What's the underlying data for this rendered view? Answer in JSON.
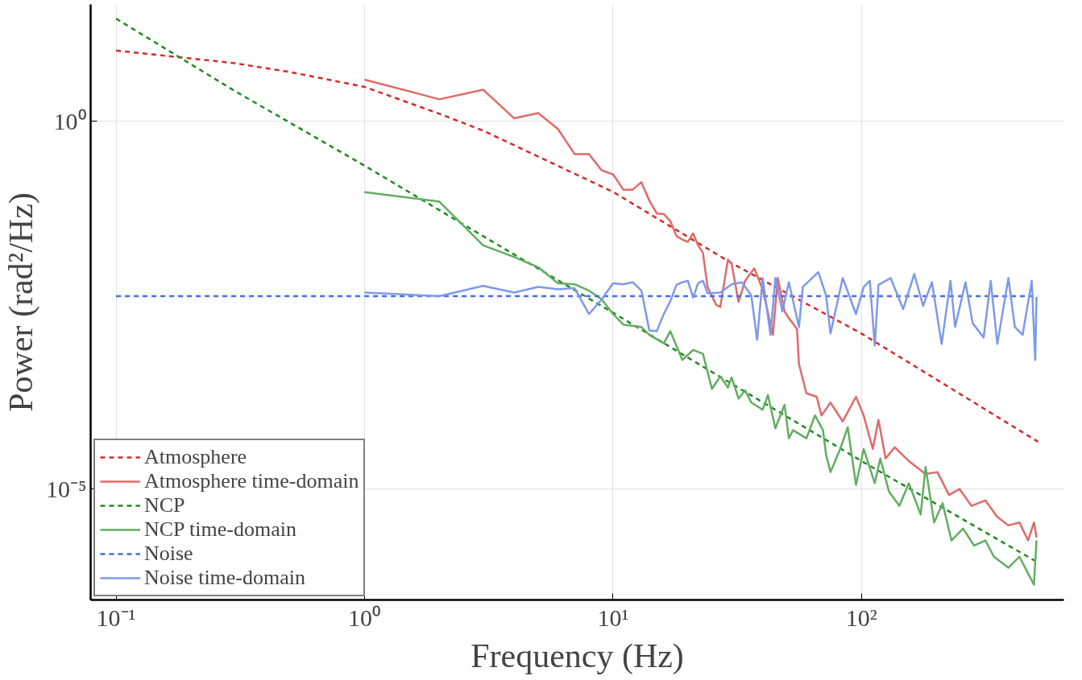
{
  "chart_data": {
    "type": "line",
    "xlabel": "Frequency (Hz)",
    "ylabel": "Power (rad²/Hz)",
    "log": "xy",
    "xlim": [
      0.079,
      652
    ],
    "ylim": [
      3.1e-07,
      39
    ],
    "xticks": [
      {
        "value": 0.1,
        "label": "10⁻¹"
      },
      {
        "value": 1,
        "label": "10⁰"
      },
      {
        "value": 10,
        "label": "10¹"
      },
      {
        "value": 100,
        "label": "10²"
      }
    ],
    "yticks": [
      {
        "value": 1e-05,
        "label": "10⁻⁵"
      },
      {
        "value": 1,
        "label": "10⁰"
      }
    ],
    "grid": true,
    "legend": "bottom left",
    "series": [
      {
        "name": "Atmosphere",
        "color": "#d42a2a",
        "line_style": "dashed",
        "x": [
          0.1,
          0.3,
          0.5,
          1,
          2,
          3,
          10,
          30,
          100,
          513
        ],
        "values": [
          9.2,
          6.2,
          4.7,
          2.95,
          1.27,
          0.75,
          0.11,
          0.0118,
          0.0013,
          4.4e-05
        ]
      },
      {
        "name": "Atmosphere time-domain",
        "color": "#e06a6a",
        "line_style": "solid",
        "x": [
          1,
          2,
          3,
          4,
          5,
          6,
          7,
          8,
          9,
          10,
          11,
          12,
          13,
          14,
          15,
          16,
          17,
          18,
          19,
          20,
          21,
          22,
          23,
          24,
          26,
          27,
          29,
          30,
          32,
          34,
          37,
          40,
          44,
          46,
          49,
          51,
          55,
          56,
          60,
          66,
          69,
          75,
          84,
          95,
          102,
          111,
          117,
          125,
          136,
          155,
          181,
          202,
          225,
          248,
          277,
          315,
          351,
          390,
          432,
          468,
          494,
          506
        ],
        "values": [
          3.7,
          2.0,
          2.7,
          1.1,
          1.3,
          0.79,
          0.36,
          0.36,
          0.216,
          0.19,
          0.118,
          0.118,
          0.149,
          0.0836,
          0.056,
          0.055,
          0.044,
          0.0276,
          0.0248,
          0.023,
          0.03,
          0.0206,
          0.0163,
          0.0056,
          0.0032,
          0.003,
          0.0132,
          0.0115,
          0.0035,
          0.0068,
          0.01,
          0.0052,
          0.00125,
          0.0074,
          0.0026,
          0.0021,
          0.0015,
          0.0005,
          0.0002,
          0.00018,
          0.0001,
          0.00015,
          8.3e-05,
          0.00018,
          0.0001,
          3.5e-05,
          8.7e-05,
          2.6e-05,
          3.7e-05,
          2.4e-05,
          1.6e-05,
          1.7e-05,
          8.3e-06,
          1e-05,
          5.9e-06,
          7e-06,
          4.2e-06,
          3.2e-06,
          3.5e-06,
          2e-06,
          3.5e-06,
          2.2e-06
        ]
      },
      {
        "name": "NCP",
        "color": "#1f8b1f",
        "line_style": "dashed",
        "x": [
          0.1,
          0.3,
          1,
          3,
          10,
          30,
          100,
          513
        ],
        "values": [
          25,
          2.6,
          0.25,
          0.0275,
          0.0025,
          0.00027,
          2.4e-05,
          1e-06
        ]
      },
      {
        "name": "NCP time-domain",
        "color": "#62ad62",
        "line_style": "solid",
        "x": [
          1,
          2,
          3,
          4,
          5,
          6,
          7,
          8,
          9,
          10,
          11,
          13,
          14,
          16,
          17,
          19,
          21,
          23,
          25,
          27,
          29,
          30,
          32,
          34,
          36,
          40,
          42,
          45,
          49,
          51,
          53,
          60,
          65,
          70,
          72,
          75,
          82,
          88,
          95,
          102,
          113,
          119,
          129,
          142,
          155,
          173,
          181,
          196,
          212,
          230,
          256,
          284,
          315,
          341,
          390,
          432,
          468,
          494,
          506
        ],
        "values": [
          0.109,
          0.081,
          0.0206,
          0.0143,
          0.0104,
          0.0063,
          0.0061,
          0.005,
          0.0038,
          0.0024,
          0.00172,
          0.0016,
          0.00125,
          0.00096,
          0.0014,
          0.00057,
          0.00078,
          0.00069,
          0.00023,
          0.00034,
          0.00024,
          0.00033,
          0.00017,
          0.00022,
          0.00015,
          0.00012,
          0.00019,
          6.7e-05,
          0.00014,
          4.9e-05,
          6.3e-05,
          4.9e-05,
          0.0001,
          6.3e-05,
          2.9e-05,
          1.7e-05,
          3.5e-05,
          6.9e-05,
          1.14e-05,
          3.5e-05,
          1.2e-05,
          2.6e-05,
          9.2e-06,
          5.9e-06,
          1.2e-05,
          4.5e-06,
          2e-05,
          3.5e-06,
          6.4e-06,
          2e-06,
          2.9e-06,
          1.7e-06,
          2e-06,
          1.2e-06,
          8.5e-07,
          1.2e-06,
          7.1e-07,
          5e-07,
          2e-06
        ]
      },
      {
        "name": "Noise",
        "color": "#3f6ee8",
        "line_style": "dashed",
        "x": [
          0.1,
          513
        ],
        "values": [
          0.0042,
          0.0042
        ]
      },
      {
        "name": "Noise time-domain",
        "color": "#7e99ea",
        "line_style": "solid",
        "x": [
          1,
          2,
          3,
          4,
          5,
          6,
          7,
          8,
          9,
          10,
          11,
          12,
          13,
          14,
          15,
          16,
          17,
          18,
          19,
          20,
          21,
          22,
          23,
          24,
          27,
          30,
          33,
          36,
          38,
          40,
          43,
          45,
          48,
          51,
          56,
          58,
          67,
          72,
          75,
          84,
          95,
          102,
          108,
          113,
          117,
          131,
          147,
          163,
          177,
          192,
          210,
          228,
          238,
          262,
          280,
          310,
          331,
          352,
          390,
          414,
          445,
          484,
          500,
          506
        ],
        "values": [
          0.0047,
          0.0042,
          0.0058,
          0.0047,
          0.0056,
          0.0052,
          0.0054,
          0.0024,
          0.0038,
          0.0063,
          0.0061,
          0.0065,
          0.005,
          0.00143,
          0.0014,
          0.0024,
          0.0036,
          0.006,
          0.0065,
          0.0068,
          0.004,
          0.0063,
          0.0068,
          0.0046,
          0.0047,
          0.0061,
          0.0065,
          0.0043,
          0.00107,
          0.0074,
          0.00125,
          0.0074,
          0.0026,
          0.0065,
          0.0016,
          0.0056,
          0.0089,
          0.0043,
          0.0013,
          0.0074,
          0.0024,
          0.0056,
          0.0068,
          0.00089,
          0.006,
          0.0074,
          0.0028,
          0.0084,
          0.0031,
          0.0065,
          0.00094,
          0.0068,
          0.0016,
          0.0065,
          0.0018,
          0.00115,
          0.0068,
          0.00094,
          0.0074,
          0.0016,
          0.00125,
          0.0068,
          0.00057,
          0.0041
        ]
      }
    ]
  }
}
